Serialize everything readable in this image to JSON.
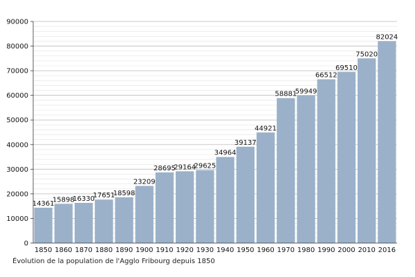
{
  "chart_data": {
    "type": "bar",
    "categories": [
      "1850",
      "1860",
      "1870",
      "1880",
      "1890",
      "1900",
      "1910",
      "1920",
      "1930",
      "1940",
      "1950",
      "1960",
      "1970",
      "1980",
      "1990",
      "2000",
      "2010",
      "2016"
    ],
    "values": [
      14361,
      15898,
      16330,
      17651,
      18598,
      23209,
      28695,
      29164,
      29625,
      34964,
      39137,
      44921,
      58881,
      59949,
      66512,
      69510,
      75020,
      82024
    ],
    "data_labels": [
      "14361",
      "15898",
      "16330",
      "17651",
      "18598",
      "23209",
      "28695",
      "29164",
      "29625",
      "34964",
      "39137",
      "44921",
      "58881",
      "59949",
      "66512",
      "69510",
      "75020",
      "82024"
    ],
    "y_ticks": [
      0,
      10000,
      20000,
      30000,
      40000,
      50000,
      60000,
      70000,
      80000,
      90000
    ],
    "ylim": [
      0,
      90000
    ],
    "minor_grid_step": 2000,
    "grid": true,
    "bar_color": "#9bb1c9",
    "caption": "Évolution de la population de l'Agglo Fribourg depuis 1850"
  }
}
